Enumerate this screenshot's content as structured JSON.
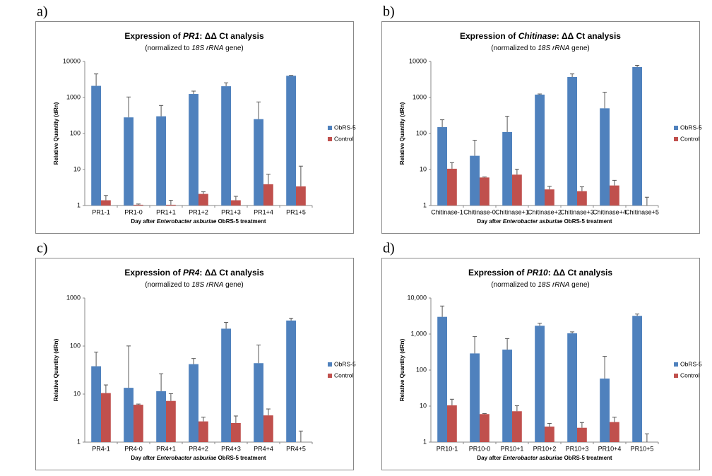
{
  "chart_data": [
    {
      "type": "bar",
      "panel_label": "a)",
      "title": [
        "Expression of ",
        "PR1",
        ": ΔΔ Ct analysis"
      ],
      "subtitle": [
        "(normalized to ",
        "18S rRNA",
        " gene)"
      ],
      "x_label": [
        "Day after ",
        "Enterobacter asburiae",
        " ObRS-5 treatment"
      ],
      "y_label": "Relative Quantity (dRn)",
      "categories": [
        "PR1-1",
        "PR1-0",
        "PR1+1",
        "PR1+2",
        "PR1+3",
        "PR1+4",
        "PR1+5"
      ],
      "series": [
        {
          "name": "ObRS-5",
          "color": "#4f81bd",
          "values": [
            2100,
            280,
            300,
            1250,
            2050,
            250,
            4000
          ],
          "errors": [
            2400,
            750,
            300,
            250,
            500,
            500,
            100
          ]
        },
        {
          "name": "Control",
          "color": "#c0504d",
          "values": [
            1.4,
            1.05,
            1.05,
            2.1,
            1.4,
            3.9,
            3.4
          ],
          "errors": [
            0.5,
            0.05,
            0.35,
            0.3,
            0.4,
            3.5,
            9
          ]
        }
      ],
      "ylim": [
        1,
        10000
      ],
      "yticks": [
        1,
        10,
        100,
        1000,
        10000
      ],
      "log_scale": true,
      "grid": false,
      "legend": "right"
    },
    {
      "type": "bar",
      "panel_label": "b)",
      "title": [
        "Expression of ",
        "Chitinase",
        ": ΔΔ Ct analysis"
      ],
      "subtitle": [
        "(normalized to ",
        "18S rRNA",
        " gene)"
      ],
      "x_label": [
        "Day after ",
        "Enterobacter asburiae",
        " ObRS-5 treatment"
      ],
      "y_label": "Relative Quantity (dRn)",
      "categories": [
        "Chitinase-1",
        "Chitinase-0",
        "Chitinase+1",
        "Chitinase+2",
        "Chitinase+3",
        "Chitinase+4",
        "Chitinase+5"
      ],
      "series": [
        {
          "name": "ObRS-5",
          "color": "#4f81bd",
          "values": [
            150,
            24,
            110,
            1200,
            3700,
            500,
            7000
          ],
          "errors": [
            90,
            41,
            190,
            50,
            800,
            900,
            800
          ]
        },
        {
          "name": "Control",
          "color": "#c0504d",
          "values": [
            10.5,
            6,
            7.2,
            2.8,
            2.5,
            3.6,
            1
          ],
          "errors": [
            5,
            0.2,
            3,
            0.6,
            0.8,
            1.4,
            0.7
          ]
        }
      ],
      "ylim": [
        1,
        10000
      ],
      "yticks": [
        1,
        10,
        100,
        1000,
        10000
      ],
      "log_scale": true,
      "grid": false,
      "legend": "right"
    },
    {
      "type": "bar",
      "panel_label": "c)",
      "title": [
        "Expression of ",
        "PR4",
        ": ΔΔ Ct analysis"
      ],
      "subtitle": [
        "(normalized to ",
        "18S rRNA",
        " gene)"
      ],
      "x_label": [
        "Day after ",
        "Enterobacter asburiae",
        " ObRS-5 treatment"
      ],
      "y_label": "Relative Quantity (dRn)",
      "categories": [
        "PR4-1",
        "PR4-0",
        "PR4+1",
        "PR4+2",
        "PR4+3",
        "PR4+4",
        "PR4+5"
      ],
      "series": [
        {
          "name": "ObRS-5",
          "color": "#4f81bd",
          "values": [
            38,
            13.5,
            11.5,
            42,
            230,
            44,
            340
          ],
          "errors": [
            37,
            87,
            15,
            13,
            80,
            61,
            40
          ]
        },
        {
          "name": "Control",
          "color": "#c0504d",
          "values": [
            10.5,
            6,
            7.2,
            2.7,
            2.5,
            3.6,
            1
          ],
          "errors": [
            5,
            0.2,
            3,
            0.6,
            1,
            1.3,
            0.7
          ]
        }
      ],
      "ylim": [
        1,
        1000
      ],
      "yticks": [
        1,
        10,
        100,
        1000
      ],
      "log_scale": true,
      "grid": false,
      "legend": "right"
    },
    {
      "type": "bar",
      "panel_label": "d)",
      "title": [
        "Expression of ",
        "PR10",
        ": ΔΔ Ct analysis"
      ],
      "subtitle": [
        "(normalized to ",
        "18S rRNA",
        " gene)"
      ],
      "x_label": [
        "Day after ",
        "Enterobacter asburiae",
        " ObRS-5 treatment"
      ],
      "y_label": "Relative Quantity (dRn)",
      "categories": [
        "PR10-1",
        "PR10-0",
        "PR10+1",
        "PR10+2",
        "PR10+3",
        "PR10+4",
        "PR10+5"
      ],
      "series": [
        {
          "name": "ObRS-5",
          "color": "#4f81bd",
          "values": [
            3000,
            290,
            370,
            1700,
            1050,
            58,
            3200
          ],
          "errors": [
            3000,
            560,
            380,
            300,
            100,
            182,
            400
          ]
        },
        {
          "name": "Control",
          "color": "#c0504d",
          "values": [
            10.5,
            6,
            7.2,
            2.7,
            2.5,
            3.6,
            1
          ],
          "errors": [
            5,
            0.2,
            3,
            0.6,
            1,
            1.3,
            0.7
          ]
        }
      ],
      "ylim": [
        1,
        10000
      ],
      "yticks": [
        1,
        10,
        100,
        {
          "value": 1000,
          "label": "1,000"
        },
        {
          "value": 10000,
          "label": "10,000"
        }
      ],
      "log_scale": true,
      "grid": false,
      "legend": "right"
    }
  ]
}
